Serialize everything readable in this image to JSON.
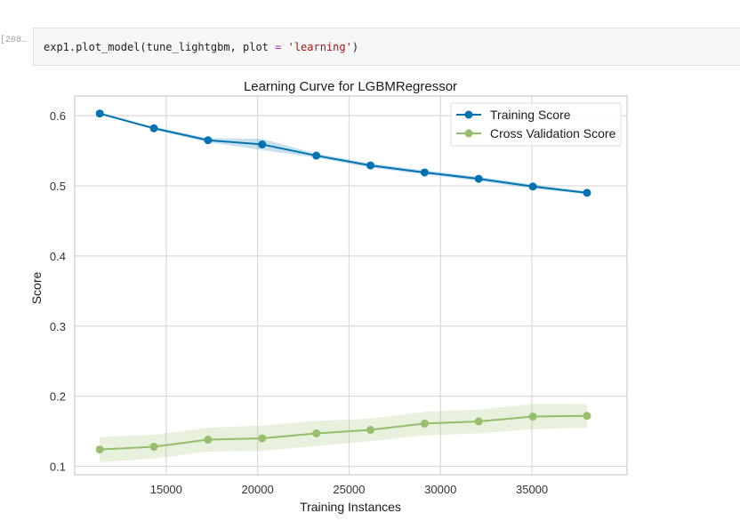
{
  "notebook": {
    "prompt": "[208…",
    "code": {
      "obj": "exp1",
      "dot": ".",
      "method": "plot_model",
      "open": "(",
      "arg1": "tune_lightgbm",
      "comma": ", ",
      "kw": "plot",
      "eq": " = ",
      "str": "'learning'",
      "close": ")"
    }
  },
  "chart_data": {
    "type": "line",
    "title": "Learning Curve for LGBMRegressor",
    "xlabel": "Training Instances",
    "ylabel": "Score",
    "xlim": [
      10000,
      40200
    ],
    "ylim": [
      0.088,
      0.628
    ],
    "xticks": [
      15000,
      20000,
      25000,
      30000,
      35000
    ],
    "yticks": [
      0.1,
      0.2,
      0.3,
      0.4,
      0.5,
      0.6
    ],
    "grid": true,
    "legend_position": "top-right",
    "x": [
      11370,
      14330,
      17290,
      20250,
      23210,
      26170,
      29130,
      32090,
      35050,
      38010
    ],
    "series": [
      {
        "name": "Training Score",
        "color": "#0072b2",
        "band_color": "#0072b2",
        "values": [
          0.603,
          0.582,
          0.565,
          0.559,
          0.543,
          0.529,
          0.519,
          0.51,
          0.499,
          0.49
        ],
        "upper": [
          0.604,
          0.584,
          0.568,
          0.567,
          0.546,
          0.532,
          0.522,
          0.513,
          0.502,
          0.492
        ],
        "lower": [
          0.602,
          0.58,
          0.562,
          0.551,
          0.54,
          0.526,
          0.516,
          0.507,
          0.496,
          0.488
        ]
      },
      {
        "name": "Cross Validation Score",
        "color": "#97be6a",
        "band_color": "#97be6a",
        "values": [
          0.124,
          0.128,
          0.138,
          0.14,
          0.147,
          0.152,
          0.161,
          0.164,
          0.171,
          0.172
        ],
        "upper": [
          0.142,
          0.145,
          0.155,
          0.158,
          0.165,
          0.168,
          0.178,
          0.181,
          0.189,
          0.189
        ],
        "lower": [
          0.106,
          0.111,
          0.121,
          0.122,
          0.129,
          0.136,
          0.144,
          0.147,
          0.153,
          0.155
        ]
      }
    ]
  }
}
